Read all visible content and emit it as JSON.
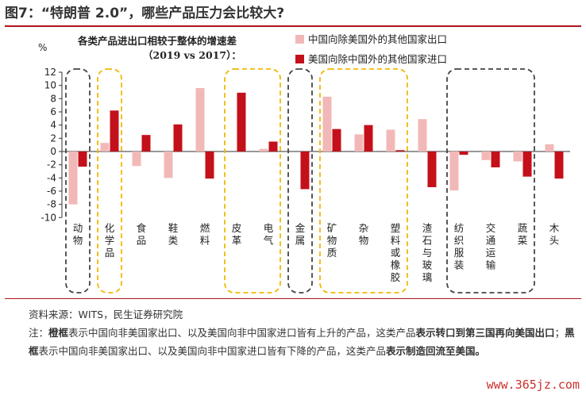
{
  "figure_title": "图7：“特朗普 2.0”，哪些产品压力会比较大?",
  "source": "资料来源：WITS，民生证券研究院",
  "note": {
    "prefix": "注：",
    "part1_bold": "橙框",
    "part2": "表示中国向非美国家出口、以及美国向非中国家进口皆有上升的产品，这类产品",
    "part3_bold": "表示转口到第三国再向美国出口",
    "part4": "；",
    "part5_bold": "黑框",
    "part6": "表示中国向非美国家出口、以及美国向非中国家进口皆有下降的产品，这类产品",
    "part7_bold": "表示制造回流至美国。"
  },
  "watermark": "www.365jz.com",
  "colors": {
    "series1": "#f2b8b8",
    "series2": "#c4101a",
    "orange_box": "#f2b705",
    "black_box": "#444444",
    "accent": "#b0141c"
  },
  "chart_data": {
    "type": "bar",
    "title": "各类产品进出口相较于整体的增速差",
    "subtitle": "（2019 vs 2017）：",
    "ylabel": "%",
    "ylim": [
      -10,
      12
    ],
    "yticks": [
      12,
      10,
      8,
      6,
      4,
      2,
      0,
      -2,
      -4,
      -6,
      -8,
      -10
    ],
    "legend_position": "top-right",
    "categories": [
      "动物",
      "化学品",
      "食品",
      "鞋类",
      "燃料",
      "皮革",
      "电气",
      "金属",
      "矿物质",
      "杂物",
      "塑料或橡胶",
      "渣石与玻璃",
      "纺织服装",
      "交通运输",
      "蔬菜",
      "木头"
    ],
    "series": [
      {
        "name": "中国向除美国外的其他国家出口",
        "values": [
          -8.0,
          1.3,
          -2.2,
          -4.0,
          9.6,
          0.0,
          0.4,
          0.0,
          8.3,
          2.6,
          3.3,
          4.9,
          -5.9,
          -1.3,
          -1.5,
          1.1
        ]
      },
      {
        "name": "美国向除中国外的其他国家进口",
        "values": [
          -2.3,
          6.2,
          2.5,
          4.1,
          -4.1,
          8.9,
          1.5,
          -5.7,
          3.4,
          4.0,
          0.2,
          -5.4,
          -0.5,
          -2.4,
          -3.8,
          -4.1
        ]
      }
    ],
    "groups": [
      {
        "type": "black",
        "categories": [
          "动物"
        ]
      },
      {
        "type": "orange",
        "categories": [
          "化学品"
        ]
      },
      {
        "type": "orange",
        "categories": [
          "皮革",
          "电气"
        ]
      },
      {
        "type": "black",
        "categories": [
          "金属"
        ]
      },
      {
        "type": "orange",
        "categories": [
          "矿物质",
          "杂物",
          "塑料或橡胶"
        ]
      },
      {
        "type": "black",
        "categories": [
          "纺织服装",
          "交通运输",
          "蔬菜"
        ]
      }
    ]
  }
}
